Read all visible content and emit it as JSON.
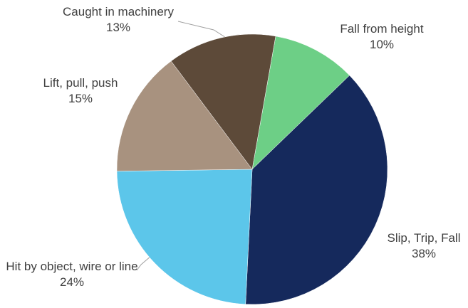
{
  "chart_data": {
    "type": "pie",
    "categories": [
      "Fall from height",
      "Slip, Trip, Fall",
      "Hit by object, wire or line",
      "Lift, pull, push",
      "Caught in machinery"
    ],
    "values": [
      10,
      38,
      24,
      15,
      13
    ],
    "value_labels": [
      "10%",
      "38%",
      "24%",
      "15%",
      "13%"
    ],
    "colors": [
      "#6dcf86",
      "#15295c",
      "#5cc6ea",
      "#a8927f",
      "#5d4a39"
    ]
  }
}
